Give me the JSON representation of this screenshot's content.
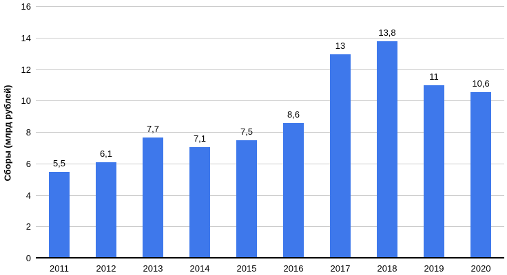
{
  "chart_data": {
    "type": "bar",
    "categories": [
      "2011",
      "2012",
      "2013",
      "2014",
      "2015",
      "2016",
      "2017",
      "2018",
      "2019",
      "2020"
    ],
    "values": [
      5.5,
      6.1,
      7.7,
      7.1,
      7.5,
      8.6,
      13,
      13.8,
      11,
      10.6
    ],
    "value_labels": [
      "5,5",
      "6,1",
      "7,7",
      "7,1",
      "7,5",
      "8,6",
      "13",
      "13,8",
      "11",
      "10,6"
    ],
    "title": "",
    "xlabel": "",
    "ylabel": "Сборы (млрд рублей)",
    "ylim": [
      0,
      16
    ],
    "ytick_step": 2,
    "ytick_labels": [
      "0",
      "2",
      "4",
      "6",
      "8",
      "10",
      "12",
      "14",
      "16"
    ],
    "grid": true,
    "legend": "none",
    "bar_color": "#3e78eb",
    "gridline_color": "#cccccc",
    "axis_line_color": "#000000",
    "text_color": "#000000"
  }
}
